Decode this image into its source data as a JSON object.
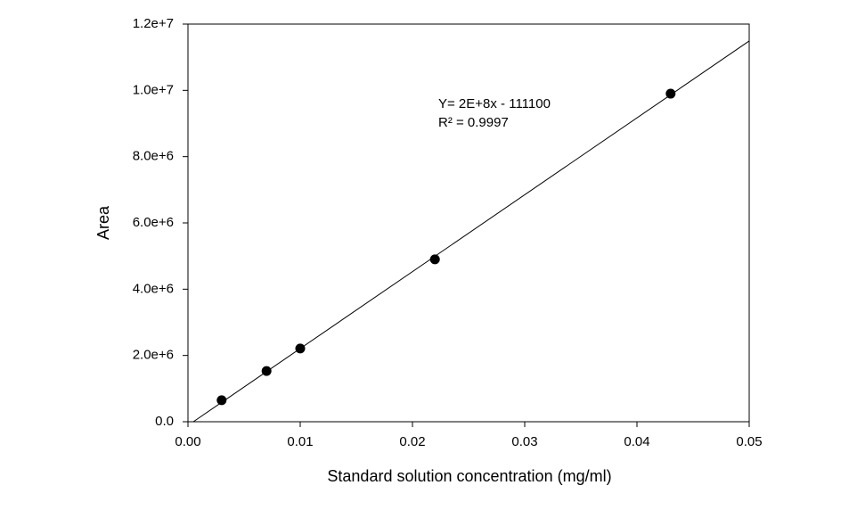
{
  "chart_data": {
    "type": "scatter",
    "x_label": "Standard solution concentration (mg/ml)",
    "y_label": "Area",
    "annotations": [
      "Y= 2E+8x - 111100",
      "R² = 0.9997"
    ],
    "series": [
      {
        "color": "#000000",
        "x": [
          0.003,
          0.007,
          0.01,
          0.022,
          0.043
        ],
        "values": [
          650000,
          1530000,
          2210000,
          4900000,
          9900000
        ]
      }
    ],
    "fit": {
      "color": "#000000",
      "x": [
        0.00048,
        0.05
      ],
      "values": [
        0,
        11490000
      ]
    },
    "xlim": [
      0,
      0.05
    ],
    "ylim": [
      0,
      12000000
    ],
    "xticks": [
      {
        "value": 0,
        "label": "0.00"
      },
      {
        "value": 0.01,
        "label": "0.01"
      },
      {
        "value": 0.02,
        "label": "0.02"
      },
      {
        "value": 0.03,
        "label": "0.03"
      },
      {
        "value": 0.04,
        "label": "0.04"
      },
      {
        "value": 0.05,
        "label": "0.05"
      }
    ],
    "yticks": [
      {
        "value": 0,
        "label": "0.0"
      },
      {
        "value": 2000000,
        "label": "2.0e+6"
      },
      {
        "value": 4000000,
        "label": "4.0e+6"
      },
      {
        "value": 6000000,
        "label": "6.0e+6"
      },
      {
        "value": 8000000,
        "label": "8.0e+6"
      },
      {
        "value": 10000000,
        "label": "1.0e+7"
      },
      {
        "value": 12000000,
        "label": "1.2e+7"
      }
    ],
    "grid": false
  }
}
